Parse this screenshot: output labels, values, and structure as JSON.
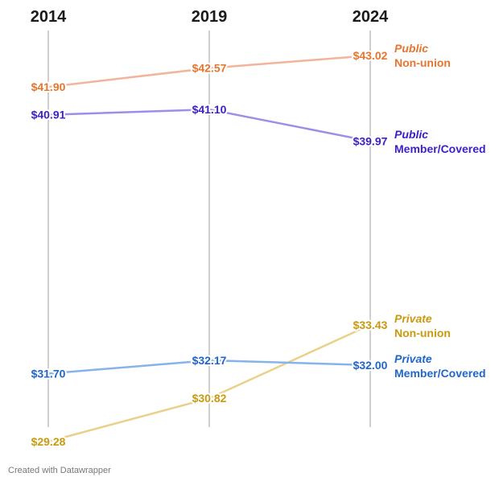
{
  "chart_data": {
    "type": "line",
    "x": [
      "2014",
      "2019",
      "2024"
    ],
    "ylim": [
      29.28,
      43.02
    ],
    "grid": false,
    "legend": "right",
    "series": [
      {
        "key": "pub_nonunion",
        "category": "Public",
        "label": "Non-union",
        "values": [
          41.9,
          42.57,
          43.02
        ],
        "value_labels": [
          "$41.90",
          "$42.57",
          "$43.02"
        ],
        "color": "#e8752d",
        "line_color": "#f2b49a"
      },
      {
        "key": "pub_member",
        "category": "Public",
        "label": "Member/Covered",
        "values": [
          40.91,
          41.1,
          39.97
        ],
        "value_labels": [
          "$40.91",
          "$41.10",
          "$39.97"
        ],
        "color": "#3b1fcc",
        "line_color": "#9d8ee8"
      },
      {
        "key": "priv_nonunion",
        "category": "Private",
        "label": "Non-union",
        "values": [
          29.28,
          30.82,
          33.43
        ],
        "value_labels": [
          "$29.28",
          "$30.82",
          "$33.43"
        ],
        "color": "#c99a0e",
        "line_color": "#ead08a"
      },
      {
        "key": "priv_member",
        "category": "Private",
        "label": "Member/Covered",
        "values": [
          31.7,
          32.17,
          32.0
        ],
        "value_labels": [
          "$31.70",
          "$32.17",
          "$32.00"
        ],
        "color": "#1f66cc",
        "line_color": "#86b3ea"
      }
    ]
  },
  "footer": "Created with Datawrapper"
}
